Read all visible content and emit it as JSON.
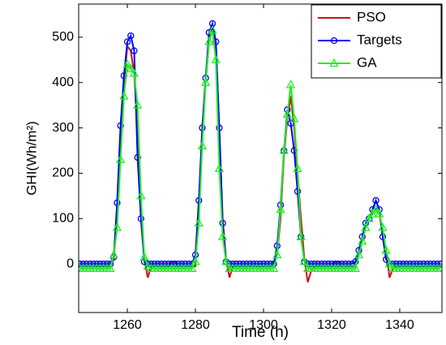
{
  "chart_data": {
    "type": "line",
    "xlabel": "Time (h)",
    "ylabel": "GHI(Wh/m²)",
    "xlim": [
      1245.7,
      1352.4
    ],
    "ylim": [
      -107,
      573
    ],
    "xticks": [
      1260,
      1280,
      1300,
      1320,
      1340
    ],
    "yticks": [
      0,
      100,
      200,
      300,
      400,
      500
    ],
    "grid": false,
    "legend": "upper right",
    "x": [
      1246,
      1247,
      1248,
      1249,
      1250,
      1251,
      1252,
      1253,
      1254,
      1255,
      1256,
      1257,
      1258,
      1259,
      1260,
      1261,
      1262,
      1263,
      1264,
      1265,
      1266,
      1267,
      1268,
      1269,
      1270,
      1271,
      1272,
      1273,
      1274,
      1275,
      1276,
      1277,
      1278,
      1279,
      1280,
      1281,
      1282,
      1283,
      1284,
      1285,
      1286,
      1287,
      1288,
      1289,
      1290,
      1291,
      1292,
      1293,
      1294,
      1295,
      1296,
      1297,
      1298,
      1299,
      1300,
      1301,
      1302,
      1303,
      1304,
      1305,
      1306,
      1307,
      1308,
      1309,
      1310,
      1311,
      1312,
      1313,
      1314,
      1315,
      1316,
      1317,
      1318,
      1319,
      1320,
      1321,
      1322,
      1323,
      1324,
      1325,
      1326,
      1327,
      1328,
      1329,
      1330,
      1331,
      1332,
      1333,
      1334,
      1335,
      1336,
      1337,
      1338,
      1339,
      1340,
      1341,
      1342,
      1343,
      1344,
      1345,
      1346,
      1347,
      1348,
      1349,
      1350,
      1351,
      1352
    ],
    "series": [
      {
        "name": "PSO",
        "color": "#cc1010",
        "marker": "none",
        "values": [
          -5,
          -5,
          -5,
          -5,
          -5,
          -5,
          -5,
          -5,
          -5,
          -5,
          10,
          100,
          280,
          400,
          480,
          470,
          420,
          300,
          100,
          10,
          -30,
          -5,
          -5,
          -5,
          -5,
          -5,
          -5,
          5,
          5,
          -5,
          -5,
          -5,
          -5,
          -5,
          -5,
          120,
          280,
          400,
          490,
          520,
          480,
          300,
          100,
          10,
          -30,
          -5,
          -5,
          -5,
          -5,
          -5,
          -5,
          -5,
          -5,
          -5,
          -5,
          -5,
          -5,
          -5,
          20,
          100,
          240,
          320,
          370,
          300,
          200,
          100,
          10,
          -40,
          -15,
          -5,
          -5,
          -5,
          -5,
          -5,
          -5,
          5,
          5,
          -5,
          -5,
          -5,
          -5,
          -5,
          20,
          50,
          80,
          100,
          110,
          120,
          110,
          70,
          30,
          -30,
          -10,
          -5,
          -5,
          -5,
          -5,
          -5,
          -5,
          -5,
          -5,
          -5,
          -5,
          -5,
          -5,
          -5,
          -5
        ]
      },
      {
        "name": "Targets",
        "color": "#0000ff",
        "marker": "circle",
        "values": [
          0,
          0,
          0,
          0,
          0,
          0,
          0,
          0,
          0,
          0,
          15,
          135,
          305,
          415,
          490,
          503,
          470,
          235,
          100,
          5,
          0,
          0,
          0,
          0,
          0,
          0,
          0,
          0,
          0,
          0,
          0,
          0,
          0,
          0,
          20,
          140,
          300,
          410,
          510,
          530,
          490,
          300,
          90,
          5,
          0,
          0,
          0,
          0,
          0,
          0,
          0,
          0,
          0,
          0,
          0,
          0,
          0,
          0,
          40,
          130,
          250,
          340,
          310,
          250,
          160,
          60,
          5,
          0,
          0,
          0,
          0,
          0,
          0,
          0,
          0,
          0,
          0,
          0,
          0,
          0,
          0,
          5,
          30,
          60,
          90,
          100,
          120,
          140,
          120,
          60,
          10,
          0,
          0,
          0,
          0,
          0,
          0,
          0,
          0,
          0,
          0,
          0,
          0,
          0,
          0,
          0,
          0
        ]
      },
      {
        "name": "GA",
        "color": "#22ee22",
        "marker": "triangle",
        "values": [
          -10,
          -10,
          -10,
          -10,
          -10,
          -10,
          -10,
          -10,
          -10,
          -10,
          20,
          80,
          230,
          370,
          440,
          430,
          420,
          350,
          150,
          15,
          -5,
          -10,
          -10,
          -10,
          -10,
          -10,
          -10,
          -10,
          -10,
          -10,
          -10,
          -10,
          -10,
          -10,
          5,
          90,
          260,
          400,
          490,
          515,
          450,
          210,
          60,
          5,
          -10,
          -10,
          -10,
          -10,
          -10,
          -10,
          -10,
          -10,
          -10,
          -10,
          -10,
          -10,
          -10,
          -10,
          20,
          120,
          250,
          330,
          395,
          320,
          210,
          60,
          5,
          -10,
          -10,
          -10,
          -10,
          -10,
          -10,
          -10,
          -10,
          -10,
          -10,
          -10,
          -10,
          -10,
          -10,
          -10,
          20,
          50,
          80,
          100,
          110,
          120,
          110,
          80,
          30,
          0,
          -10,
          -10,
          -10,
          -10,
          -10,
          -10,
          -10,
          -10,
          -10,
          -10,
          -10,
          -10,
          -10,
          -10,
          -10
        ]
      }
    ]
  }
}
